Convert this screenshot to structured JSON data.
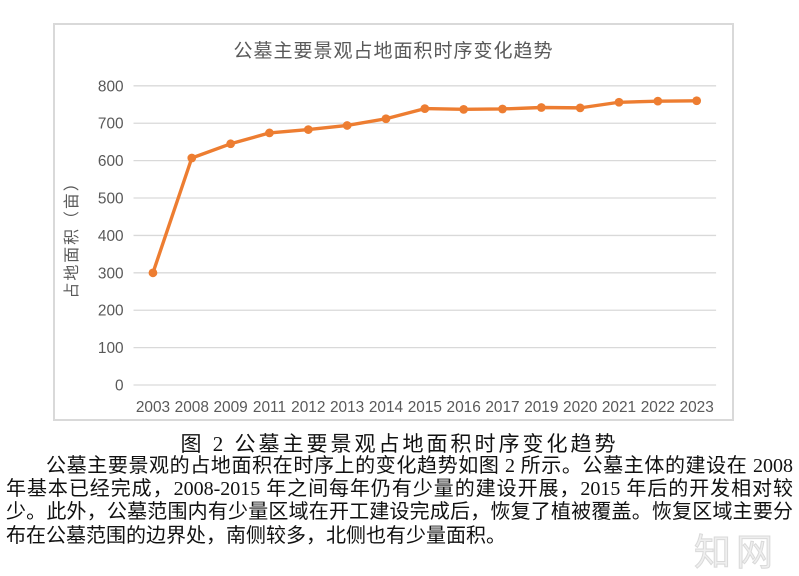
{
  "chart": {
    "colors": {
      "line": "#ED7D31",
      "grid": "#D9D9D9",
      "text": "#595959",
      "border": "#D9D9D9"
    }
  },
  "chart_data": {
    "type": "line",
    "title": "公墓主要景观占地面积时序变化趋势",
    "categories": [
      "2003",
      "2008",
      "2009",
      "2011",
      "2012",
      "2013",
      "2014",
      "2015",
      "2016",
      "2017",
      "2019",
      "2020",
      "2021",
      "2022",
      "2023"
    ],
    "values": [
      300,
      607,
      645,
      674,
      683,
      694,
      712,
      739,
      737,
      738,
      742,
      741,
      756,
      759,
      760
    ],
    "xlabel": "",
    "ylabel": "占地面积（亩）",
    "ylim": [
      0,
      800
    ],
    "y_ticks": [
      0,
      100,
      200,
      300,
      400,
      500,
      600,
      700,
      800
    ],
    "grid": true,
    "legend": false,
    "marker": "circle"
  },
  "caption": "图 2 公墓主要景观占地面积时序变化趋势",
  "body": {
    "paragraph": "公墓主要景观的占地面积在时序上的变化趋势如图 2 所示。公墓主体的建设在 2008 年基本已经完成，2008-2015 年之间每年仍有少量的建设开展，2015 年后的开发相对较少。此外，公墓范围内有少量区域在开工建设完成后，恢复了植被覆盖。恢复区域主要分布在公墓范围的边界处，南侧较多，北侧也有少量面积。"
  },
  "watermark": {
    "text": "知网"
  }
}
